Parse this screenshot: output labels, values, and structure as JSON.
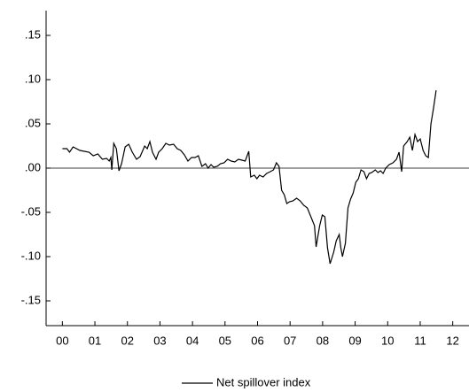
{
  "chart_data": {
    "type": "line",
    "x": [
      2000.5,
      2000.64,
      2000.72,
      2000.83,
      2001.04,
      2001.32,
      2001.45,
      2001.59,
      2001.73,
      2001.86,
      2001.94,
      2001.99,
      2002.02,
      2002.08,
      2002.16,
      2002.24,
      2002.32,
      2002.43,
      2002.54,
      2002.65,
      2002.78,
      2002.89,
      2003.03,
      2003.11,
      2003.19,
      2003.27,
      2003.38,
      2003.46,
      2003.57,
      2003.68,
      2003.79,
      2003.92,
      2004.03,
      2004.14,
      2004.25,
      2004.36,
      2004.47,
      2004.58,
      2004.68,
      2004.79,
      2004.9,
      2004.98,
      2005.07,
      2005.15,
      2005.26,
      2005.36,
      2005.47,
      2005.58,
      2005.69,
      2005.8,
      2005.91,
      2006.02,
      2006.12,
      2006.23,
      2006.29,
      2006.4,
      2006.48,
      2006.56,
      2006.67,
      2006.78,
      2006.89,
      2006.99,
      2007.08,
      2007.16,
      2007.24,
      2007.32,
      2007.4,
      2007.48,
      2007.59,
      2007.7,
      2007.81,
      2007.92,
      2008.03,
      2008.14,
      2008.25,
      2008.3,
      2008.41,
      2008.49,
      2008.57,
      2008.65,
      2008.73,
      2008.84,
      2008.92,
      2009.01,
      2009.06,
      2009.11,
      2009.2,
      2009.28,
      2009.36,
      2009.44,
      2009.52,
      2009.6,
      2009.68,
      2009.77,
      2009.85,
      2009.93,
      2010.01,
      2010.12,
      2010.2,
      2010.28,
      2010.36,
      2010.44,
      2010.55,
      2010.66,
      2010.77,
      2010.85,
      2010.93,
      2010.99,
      2011.1,
      2011.18,
      2011.26,
      2011.34,
      2011.42,
      2011.5,
      2011.59,
      2011.67,
      2011.75,
      2011.83,
      2011.91,
      2011.99
    ],
    "series": [
      {
        "name": "Net spillover index",
        "color": "#000000",
        "values": [
          0.022,
          0.022,
          0.018,
          0.024,
          0.02,
          0.018,
          0.014,
          0.016,
          0.01,
          0.011,
          0.008,
          0.012,
          -0.002,
          0.028,
          0.022,
          -0.003,
          0.005,
          0.024,
          0.027,
          0.018,
          0.01,
          0.013,
          0.025,
          0.022,
          0.03,
          0.018,
          0.01,
          0.018,
          0.022,
          0.028,
          0.026,
          0.027,
          0.022,
          0.02,
          0.015,
          0.008,
          0.012,
          0.012,
          0.014,
          0.002,
          0.005,
          0.0,
          0.004,
          0.001,
          0.002,
          0.005,
          0.006,
          0.01,
          0.008,
          0.007,
          0.01,
          0.009,
          0.008,
          0.019,
          -0.01,
          -0.008,
          -0.012,
          -0.008,
          -0.01,
          -0.006,
          -0.004,
          -0.002,
          0.006,
          0.002,
          -0.025,
          -0.03,
          -0.04,
          -0.038,
          -0.037,
          -0.034,
          -0.037,
          -0.042,
          -0.045,
          -0.055,
          -0.065,
          -0.089,
          -0.065,
          -0.053,
          -0.055,
          -0.09,
          -0.108,
          -0.095,
          -0.082,
          -0.075,
          -0.09,
          -0.1,
          -0.085,
          -0.045,
          -0.035,
          -0.028,
          -0.016,
          -0.012,
          -0.002,
          -0.004,
          -0.012,
          -0.006,
          -0.005,
          -0.002,
          -0.005,
          -0.003,
          -0.006,
          0.0,
          0.004,
          0.006,
          0.01,
          0.018,
          -0.004,
          0.025,
          0.03,
          0.035,
          0.02,
          0.038,
          0.03,
          0.033,
          0.02,
          0.014,
          0.012,
          0.05,
          0.068,
          0.088
        ]
      }
    ],
    "xlim": [
      2000,
      2013
    ],
    "xticks": [
      {
        "value": 2000.5,
        "label": "00"
      },
      {
        "value": 2001.5,
        "label": "01"
      },
      {
        "value": 2002.5,
        "label": "02"
      },
      {
        "value": 2003.5,
        "label": "03"
      },
      {
        "value": 2004.5,
        "label": "04"
      },
      {
        "value": 2005.5,
        "label": "05"
      },
      {
        "value": 2006.5,
        "label": "06"
      },
      {
        "value": 2007.5,
        "label": "07"
      },
      {
        "value": 2008.5,
        "label": "08"
      },
      {
        "value": 2009.5,
        "label": "09"
      },
      {
        "value": 2010.5,
        "label": "10"
      },
      {
        "value": 2011.5,
        "label": "11"
      },
      {
        "value": 2012.5,
        "label": "12"
      }
    ],
    "ylim": [
      -0.178,
      0.178
    ],
    "yticks": [
      {
        "value": 0.15,
        "label": ".15"
      },
      {
        "value": 0.1,
        "label": ".10"
      },
      {
        "value": 0.05,
        "label": ".05"
      },
      {
        "value": 0,
        "label": ".00"
      },
      {
        "value": -0.05,
        "label": "-.05"
      },
      {
        "value": -0.1,
        "label": "-.10"
      },
      {
        "value": -0.15,
        "label": "-.15"
      }
    ],
    "zero_line": true,
    "legend": "bottom"
  }
}
